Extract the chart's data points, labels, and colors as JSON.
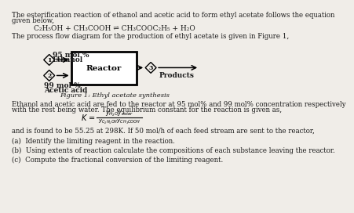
{
  "bg_color": "#f0ede8",
  "text_color": "#1a1a1a",
  "intro_text1": "The esterification reaction of ethanol and acetic acid to form ethyl acetate follows the equation",
  "intro_text2": "given below,",
  "equation": "C₂H₅OH + CH₃COOH ⇌ CH₃COOC₂H₅ + H₂O",
  "flow_text": "The process flow diagram for the production of ethyl acetate is given in Figure 1,",
  "label1": "1",
  "label2": "2",
  "label3": "3",
  "stream1_line1": "95 mol %",
  "stream1_line2": "Ethanol",
  "stream2_line1": "99 mol %",
  "stream2_line2": "Acetic acid",
  "reactor_label": "Reactor",
  "products_label": "Products",
  "figure_caption": "Figure 1: Ethyl acetate synthesis",
  "body_text1a": "Ethanol and acetic acid are fed to the reactor at 95 mol% and 99 mol% concentration respectively",
  "body_text1b": "with the rest being water. The equilibrium constant for the reaction is given as,",
  "body_text2": "and is found to be 55.25 at 298K. If 50 mol/h of each feed stream are sent to the reactor,",
  "q_a": "(a)  Identify the limiting reagent in the reaction.",
  "q_b": "(b)  Using extents of reaction calculate the compositions of each substance leaving the reactor.",
  "q_c": "(c)  Compute the fractional conversion of the limiting reagent.",
  "fs_body": 6.2,
  "fs_eq": 6.5,
  "fs_diagram": 6.5,
  "fs_caption": 6.0
}
